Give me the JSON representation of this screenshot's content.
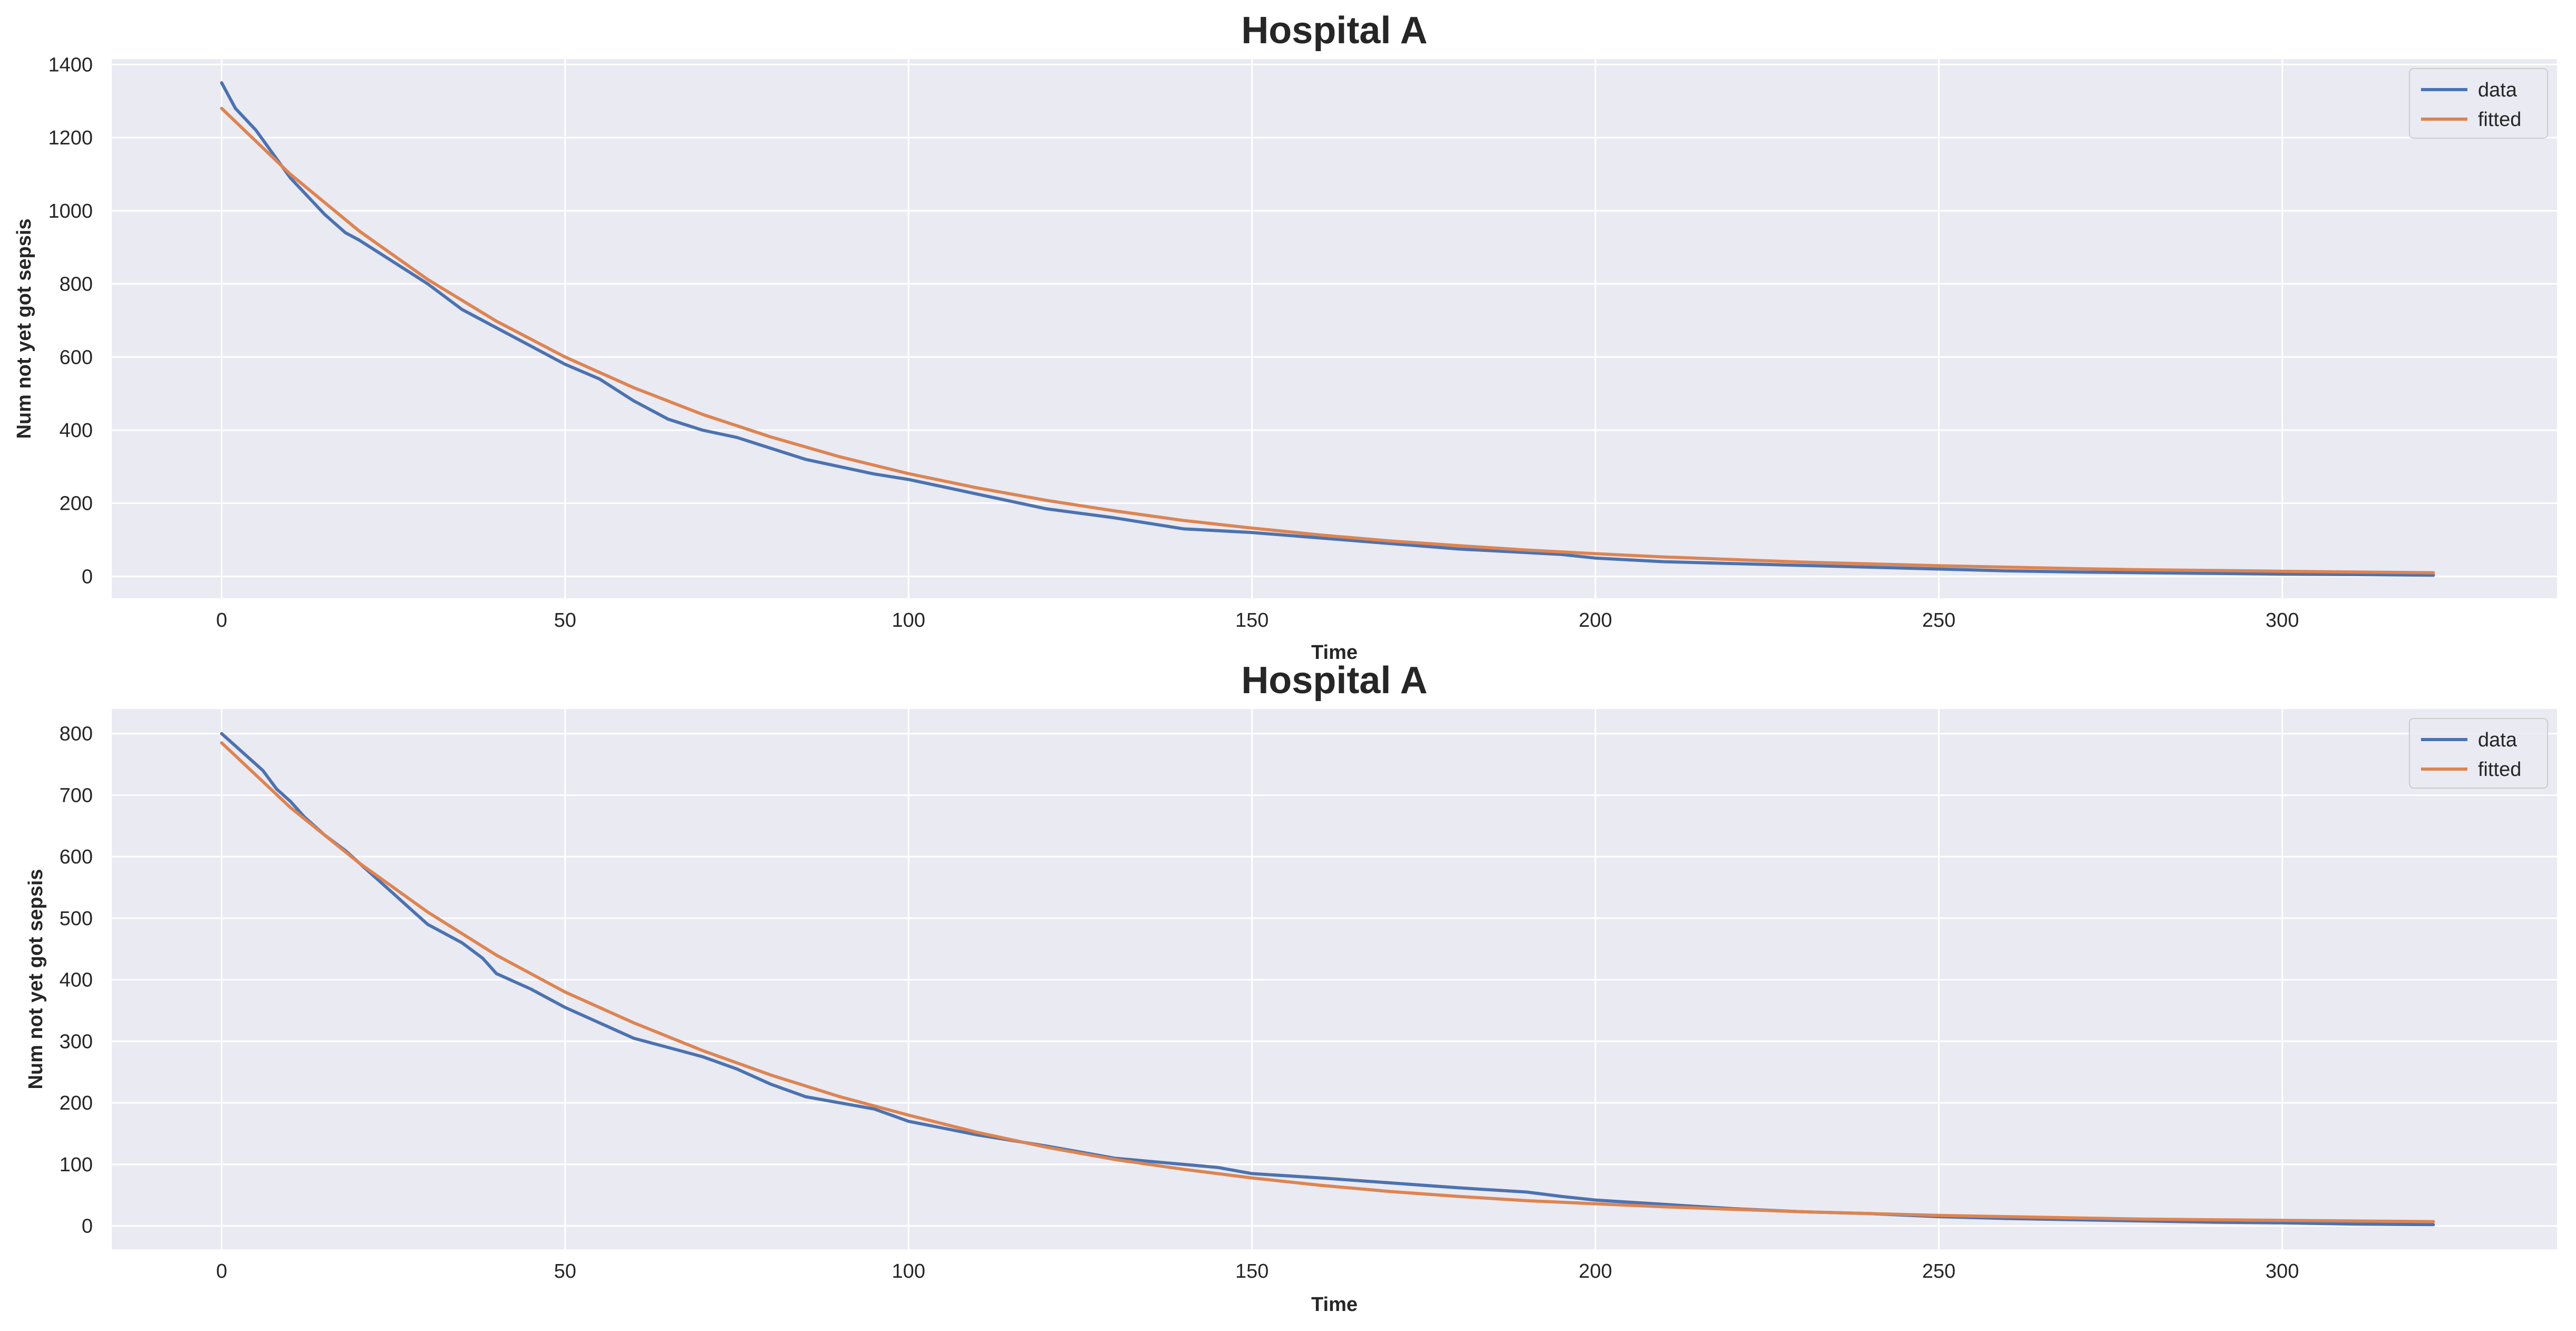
{
  "chart_data": [
    {
      "type": "line",
      "title": "Hospital A",
      "xlabel": "Time",
      "ylabel": "Num not yet got sepsis",
      "xlim": [
        -16,
        340
      ],
      "ylim": [
        -60,
        1415
      ],
      "xticks": [
        0,
        50,
        100,
        150,
        200,
        250,
        300
      ],
      "yticks": [
        0,
        200,
        400,
        600,
        800,
        1000,
        1200,
        1400
      ],
      "grid": true,
      "legend_position": "top-right",
      "series": [
        {
          "name": "data",
          "color": "#4c72b0",
          "x": [
            0,
            2,
            5,
            10,
            15,
            18,
            20,
            25,
            30,
            35,
            40,
            45,
            50,
            55,
            60,
            65,
            70,
            75,
            80,
            85,
            90,
            95,
            100,
            110,
            120,
            130,
            140,
            150,
            160,
            170,
            180,
            190,
            195,
            200,
            210,
            220,
            230,
            240,
            250,
            260,
            270,
            280,
            290,
            300,
            310,
            322
          ],
          "y": [
            1350,
            1280,
            1220,
            1090,
            990,
            940,
            920,
            860,
            800,
            730,
            680,
            630,
            580,
            540,
            480,
            430,
            400,
            380,
            350,
            320,
            300,
            280,
            265,
            225,
            185,
            160,
            130,
            120,
            105,
            90,
            75,
            65,
            60,
            50,
            40,
            35,
            30,
            25,
            20,
            15,
            12,
            10,
            8,
            6,
            5,
            3
          ]
        },
        {
          "name": "fitted",
          "color": "#dd8452",
          "x": [
            0,
            10,
            20,
            30,
            40,
            50,
            60,
            70,
            80,
            90,
            100,
            110,
            120,
            130,
            140,
            150,
            160,
            170,
            180,
            190,
            200,
            210,
            220,
            230,
            240,
            250,
            260,
            270,
            280,
            290,
            300,
            310,
            322
          ],
          "y": [
            1280,
            1100,
            945,
            812,
            698,
            600,
            516,
            443,
            381,
            327,
            281,
            242,
            208,
            179,
            153,
            132,
            113,
            97,
            84,
            72,
            62,
            53,
            46,
            39,
            34,
            29,
            25,
            21,
            18,
            16,
            14,
            12,
            10
          ]
        }
      ]
    },
    {
      "type": "line",
      "title": "Hospital A",
      "xlabel": "Time",
      "ylabel": "Num not yet got sepsis",
      "xlim": [
        -16,
        340
      ],
      "ylim": [
        -38,
        840
      ],
      "xticks": [
        0,
        50,
        100,
        150,
        200,
        250,
        300
      ],
      "yticks": [
        0,
        100,
        200,
        300,
        400,
        500,
        600,
        700,
        800
      ],
      "grid": true,
      "legend_position": "top-right",
      "series": [
        {
          "name": "data",
          "color": "#4c72b0",
          "x": [
            0,
            2,
            4,
            6,
            8,
            10,
            12,
            15,
            18,
            20,
            25,
            28,
            30,
            35,
            38,
            40,
            45,
            50,
            55,
            60,
            65,
            70,
            75,
            80,
            85,
            90,
            95,
            100,
            110,
            120,
            125,
            130,
            140,
            145,
            150,
            160,
            170,
            180,
            190,
            195,
            200,
            210,
            220,
            230,
            240,
            250,
            260,
            270,
            280,
            290,
            300,
            310,
            322
          ],
          "y": [
            800,
            780,
            760,
            740,
            710,
            690,
            665,
            635,
            610,
            590,
            540,
            510,
            490,
            460,
            435,
            410,
            385,
            355,
            330,
            305,
            290,
            275,
            255,
            230,
            210,
            200,
            190,
            170,
            148,
            130,
            120,
            110,
            100,
            95,
            85,
            78,
            70,
            62,
            55,
            48,
            42,
            35,
            28,
            23,
            20,
            15,
            12,
            10,
            8,
            6,
            5,
            3,
            2
          ]
        },
        {
          "name": "fitted",
          "color": "#dd8452",
          "x": [
            0,
            10,
            20,
            30,
            40,
            50,
            60,
            70,
            80,
            90,
            100,
            110,
            120,
            130,
            140,
            150,
            160,
            170,
            180,
            190,
            200,
            210,
            220,
            230,
            240,
            250,
            260,
            270,
            280,
            290,
            300,
            310,
            322
          ],
          "y": [
            785,
            680,
            590,
            510,
            440,
            380,
            330,
            285,
            245,
            210,
            180,
            152,
            128,
            108,
            92,
            78,
            66,
            56,
            48,
            41,
            36,
            31,
            27,
            23,
            20,
            17,
            15,
            13,
            11,
            10,
            9,
            8,
            7
          ]
        }
      ]
    }
  ]
}
